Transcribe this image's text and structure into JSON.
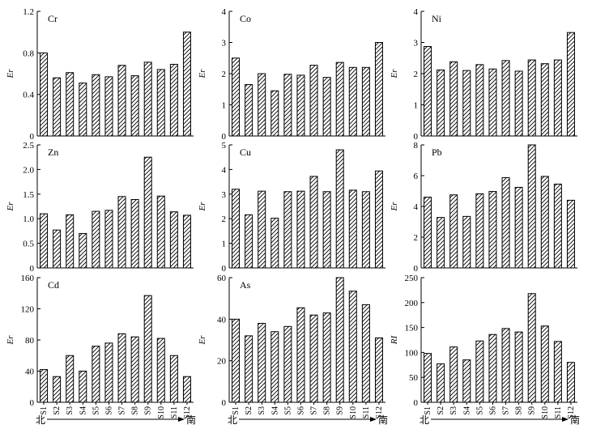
{
  "colors": {
    "bar_edge": "#000000",
    "hatch": "#000000",
    "background": "#ffffff"
  },
  "direction": {
    "start": "北",
    "end": "南"
  },
  "chart_data": [
    {
      "type": "bar",
      "panel_label": "Cr",
      "ylabel": "Er",
      "ylim": [
        0,
        1.2
      ],
      "yticks": [
        0,
        0.4,
        0.8,
        1.2
      ],
      "ytick_labels": [
        "0",
        "0.4",
        "0.8",
        "1.2"
      ],
      "categories": [
        "S1",
        "S2",
        "S3",
        "S4",
        "S5",
        "S6",
        "S7",
        "S8",
        "S9",
        "S10",
        "S11",
        "S12"
      ],
      "values": [
        0.8,
        0.56,
        0.61,
        0.51,
        0.59,
        0.57,
        0.68,
        0.58,
        0.71,
        0.64,
        0.69,
        1.0
      ],
      "show_xticks": false,
      "grid": false
    },
    {
      "type": "bar",
      "panel_label": "Co",
      "ylabel": "Er",
      "ylim": [
        0,
        4
      ],
      "yticks": [
        0,
        1,
        2,
        3,
        4
      ],
      "ytick_labels": [
        "0",
        "1",
        "2",
        "3",
        "4"
      ],
      "categories": [
        "S1",
        "S2",
        "S3",
        "S4",
        "S5",
        "S6",
        "S7",
        "S8",
        "S9",
        "S10",
        "S11",
        "S12"
      ],
      "values": [
        2.5,
        1.65,
        2.0,
        1.45,
        1.98,
        1.95,
        2.27,
        1.88,
        2.36,
        2.2,
        2.2,
        3.0
      ],
      "show_xticks": false,
      "grid": false
    },
    {
      "type": "bar",
      "panel_label": "Ni",
      "ylabel": "Er",
      "ylim": [
        0,
        4
      ],
      "yticks": [
        0,
        1,
        2,
        3,
        4
      ],
      "ytick_labels": [
        "0",
        "1",
        "2",
        "3",
        "4"
      ],
      "categories": [
        "S1",
        "S2",
        "S3",
        "S4",
        "S5",
        "S6",
        "S7",
        "S8",
        "S9",
        "S10",
        "S11",
        "S12"
      ],
      "values": [
        2.87,
        2.12,
        2.38,
        2.1,
        2.29,
        2.15,
        2.42,
        2.08,
        2.44,
        2.32,
        2.44,
        3.32
      ],
      "show_xticks": false,
      "grid": false
    },
    {
      "type": "bar",
      "panel_label": "Zn",
      "ylabel": "Er",
      "ylim": [
        0,
        2.5
      ],
      "yticks": [
        0,
        0.5,
        1.0,
        1.5,
        2.0,
        2.5
      ],
      "ytick_labels": [
        "0",
        "0.5",
        "1.0",
        "1.5",
        "2.0",
        "2.5"
      ],
      "categories": [
        "S1",
        "S2",
        "S3",
        "S4",
        "S5",
        "S6",
        "S7",
        "S8",
        "S9",
        "S10",
        "S11",
        "S12"
      ],
      "values": [
        1.1,
        0.77,
        1.08,
        0.7,
        1.15,
        1.17,
        1.45,
        1.39,
        2.25,
        1.46,
        1.14,
        1.07
      ],
      "show_xticks": false,
      "grid": false
    },
    {
      "type": "bar",
      "panel_label": "Cu",
      "ylabel": "Er",
      "ylim": [
        0,
        5
      ],
      "yticks": [
        0,
        1,
        2,
        3,
        4,
        5
      ],
      "ytick_labels": [
        "0",
        "1",
        "2",
        "3",
        "4",
        "5"
      ],
      "categories": [
        "S1",
        "S2",
        "S3",
        "S4",
        "S5",
        "S6",
        "S7",
        "S8",
        "S9",
        "S10",
        "S11",
        "S12"
      ],
      "values": [
        3.2,
        2.16,
        3.12,
        2.02,
        3.1,
        3.12,
        3.72,
        3.1,
        4.8,
        3.16,
        3.1,
        3.94
      ],
      "show_xticks": false,
      "grid": false
    },
    {
      "type": "bar",
      "panel_label": "Pb",
      "ylabel": "Er",
      "ylim": [
        0,
        8
      ],
      "yticks": [
        0,
        2,
        4,
        6,
        8
      ],
      "ytick_labels": [
        "0",
        "2",
        "4",
        "6",
        "8"
      ],
      "categories": [
        "S1",
        "S2",
        "S3",
        "S4",
        "S5",
        "S6",
        "S7",
        "S8",
        "S9",
        "S10",
        "S11",
        "S12"
      ],
      "values": [
        4.6,
        3.28,
        4.75,
        3.35,
        4.82,
        4.97,
        5.87,
        5.24,
        8.0,
        5.95,
        5.45,
        4.4
      ],
      "show_xticks": false,
      "grid": false
    },
    {
      "type": "bar",
      "panel_label": "Cd",
      "ylabel": "Er",
      "ylim": [
        0,
        160
      ],
      "yticks": [
        0,
        40,
        80,
        120,
        160
      ],
      "ytick_labels": [
        "0",
        "40",
        "80",
        "120",
        "160"
      ],
      "categories": [
        "S1",
        "S2",
        "S3",
        "S4",
        "S5",
        "S6",
        "S7",
        "S8",
        "S9",
        "S10",
        "S11",
        "S12"
      ],
      "values": [
        42,
        33,
        60,
        40,
        72,
        76,
        88,
        84,
        137,
        82,
        60,
        33
      ],
      "show_xticks": true,
      "grid": false
    },
    {
      "type": "bar",
      "panel_label": "As",
      "ylabel": "Er",
      "ylim": [
        0,
        60
      ],
      "yticks": [
        0,
        20,
        40,
        60
      ],
      "ytick_labels": [
        "0",
        "20",
        "40",
        "60"
      ],
      "categories": [
        "S1",
        "S2",
        "S3",
        "S4",
        "S5",
        "S6",
        "S7",
        "S8",
        "S9",
        "S10",
        "S11",
        "S12"
      ],
      "values": [
        40,
        32,
        38,
        34,
        36.5,
        45.5,
        42,
        43,
        60,
        53.5,
        47,
        31
      ],
      "show_xticks": true,
      "grid": false
    },
    {
      "type": "bar",
      "panel_label": "",
      "ylabel": "RI",
      "ylim": [
        0,
        250
      ],
      "yticks": [
        0,
        50,
        100,
        150,
        200,
        250
      ],
      "ytick_labels": [
        "0",
        "50",
        "100",
        "150",
        "200",
        "250"
      ],
      "categories": [
        "S1",
        "S2",
        "S3",
        "S4",
        "S5",
        "S6",
        "S7",
        "S8",
        "S9",
        "S10",
        "S11",
        "S12"
      ],
      "values": [
        98,
        77,
        111,
        85,
        123,
        136,
        148,
        141,
        218,
        153,
        122,
        80
      ],
      "show_xticks": true,
      "grid": false
    }
  ]
}
